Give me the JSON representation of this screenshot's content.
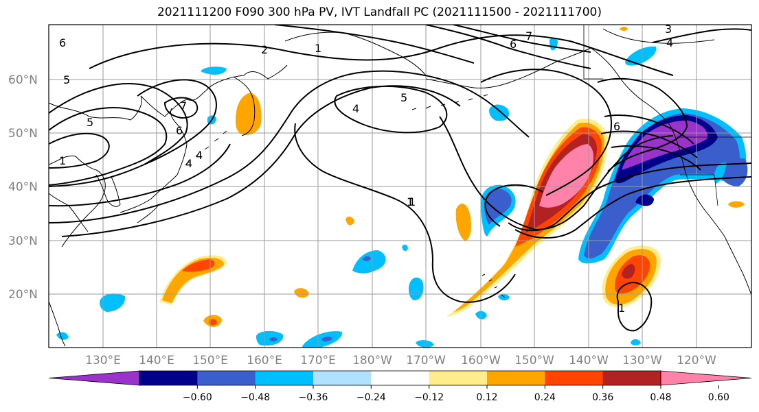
{
  "title": "2021111200 F090 300 hPa PV, IVT Landfall PC (2021111500 - 2021111700)",
  "latitude_labels": [
    "60°N",
    "50°N",
    "40°N",
    "30°N",
    "20°N"
  ],
  "longitude_labels": [
    "130°E",
    "140°E",
    "150°E",
    "160°E",
    "170°E",
    "180°W",
    "170°W",
    "160°W",
    "150°W",
    "140°W",
    "130°W",
    "120°W"
  ],
  "colorbar": {
    "ticks": [
      "−0.60",
      "−0.48",
      "−0.36",
      "−0.24",
      "−0.12",
      "0.12",
      "0.24",
      "0.36",
      "0.48",
      "0.60"
    ],
    "colors": [
      "#9933cc",
      "#00008b",
      "#3a5fcd",
      "#00bfff",
      "#b0e2ff",
      "#ffffff",
      "#ffec8b",
      "#ffa500",
      "#ff4500",
      "#b22222",
      "#ff82ab"
    ]
  },
  "contour_labels": [
    "2",
    "1",
    "7",
    "6",
    "4",
    "5",
    "5",
    "4",
    "6",
    "4",
    "1",
    "5",
    "1",
    "7",
    "6",
    "3",
    "4",
    "1",
    "6",
    "1"
  ],
  "colors": {
    "grid": "#9a9a9a",
    "axis_labels": "#808080"
  }
}
